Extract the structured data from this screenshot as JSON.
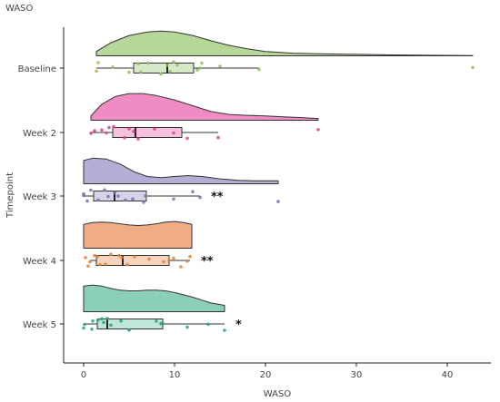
{
  "chart_data": {
    "type": "raincloud",
    "title": "WASO",
    "xlabel": "WASO",
    "ylabel": "Timepoint",
    "xlim": [
      -2,
      45
    ],
    "x_ticks": [
      0,
      10,
      20,
      30,
      40
    ],
    "grid": false,
    "legend": "none",
    "series": [
      {
        "category": "Baseline",
        "color": "#8fbf5a",
        "fill": "#b7d69a",
        "significance": "",
        "box": {
          "min": 1.4,
          "q1": 5.5,
          "median": 9.2,
          "q3": 12.1,
          "max": 19.3
        },
        "density": [
          [
            1.4,
            0.15
          ],
          [
            3,
            0.45
          ],
          [
            5,
            0.7
          ],
          [
            7,
            0.82
          ],
          [
            8.6,
            0.85
          ],
          [
            10,
            0.82
          ],
          [
            12,
            0.7
          ],
          [
            14,
            0.52
          ],
          [
            16,
            0.36
          ],
          [
            18,
            0.24
          ],
          [
            20,
            0.15
          ],
          [
            23,
            0.09
          ],
          [
            26,
            0.07
          ],
          [
            30,
            0.05
          ],
          [
            34,
            0.03
          ],
          [
            38,
            0.02
          ],
          [
            42.8,
            0.01
          ]
        ],
        "points": [
          1.4,
          1.6,
          3.2,
          5.0,
          6.0,
          6.3,
          7.1,
          8.5,
          9.2,
          9.5,
          9.9,
          10.3,
          12.5,
          12.8,
          13.0,
          15.0,
          19.3,
          42.8
        ]
      },
      {
        "category": "Week 2",
        "color": "#d63f8c",
        "fill": "#f08cc4",
        "significance": "",
        "box": {
          "min": 0.8,
          "q1": 3.2,
          "median": 5.7,
          "q3": 10.8,
          "max": 14.8
        },
        "density": [
          [
            0.8,
            0.15
          ],
          [
            2,
            0.55
          ],
          [
            3.5,
            0.82
          ],
          [
            5,
            0.92
          ],
          [
            6.5,
            0.92
          ],
          [
            8,
            0.85
          ],
          [
            10,
            0.7
          ],
          [
            12,
            0.5
          ],
          [
            14,
            0.3
          ],
          [
            16,
            0.2
          ],
          [
            18,
            0.17
          ],
          [
            20,
            0.15
          ],
          [
            22,
            0.12
          ],
          [
            24,
            0.09
          ],
          [
            25.8,
            0.06
          ]
        ],
        "points": [
          0.8,
          1.2,
          2.0,
          2.5,
          2.8,
          3.3,
          4.5,
          5.0,
          5.5,
          6.0,
          7.8,
          9.9,
          11.4,
          14.8,
          25.8
        ]
      },
      {
        "category": "Week 3",
        "color": "#7b6fb0",
        "fill": "#b3aed6",
        "significance": "**",
        "box": {
          "min": 0.0,
          "q1": 1.1,
          "median": 3.4,
          "q3": 6.9,
          "max": 12.8
        },
        "density": [
          [
            0,
            0.8
          ],
          [
            1,
            0.88
          ],
          [
            2.5,
            0.85
          ],
          [
            4,
            0.68
          ],
          [
            5.5,
            0.42
          ],
          [
            7,
            0.25
          ],
          [
            8.5,
            0.21
          ],
          [
            10,
            0.25
          ],
          [
            11.5,
            0.28
          ],
          [
            13,
            0.25
          ],
          [
            15,
            0.17
          ],
          [
            17,
            0.12
          ],
          [
            19,
            0.1
          ],
          [
            21.4,
            0.1
          ]
        ],
        "points": [
          0.0,
          0.0,
          0.4,
          0.8,
          1.6,
          2.3,
          2.7,
          3.4,
          3.8,
          4.6,
          5.4,
          6.6,
          6.8,
          9.9,
          12.0,
          12.8,
          21.4
        ]
      },
      {
        "category": "Week 4",
        "color": "#e07f36",
        "fill": "#f0ad85",
        "significance": "**",
        "box": {
          "min": 0.7,
          "q1": 1.4,
          "median": 4.3,
          "q3": 9.4,
          "max": 11.7
        },
        "density": [
          [
            0,
            0.82
          ],
          [
            1,
            0.88
          ],
          [
            2,
            0.9
          ],
          [
            3,
            0.88
          ],
          [
            4,
            0.84
          ],
          [
            5,
            0.8
          ],
          [
            6,
            0.78
          ],
          [
            7,
            0.8
          ],
          [
            8,
            0.84
          ],
          [
            9,
            0.9
          ],
          [
            10,
            0.92
          ],
          [
            11,
            0.88
          ],
          [
            11.9,
            0.82
          ]
        ],
        "points": [
          0.2,
          0.5,
          0.7,
          1.2,
          1.5,
          1.8,
          2.4,
          3.0,
          3.9,
          4.2,
          4.8,
          5.6,
          7.2,
          8.8,
          9.4,
          9.9,
          10.7,
          11.4,
          11.7
        ]
      },
      {
        "category": "Week 5",
        "color": "#2a9d7f",
        "fill": "#8ccfb9",
        "significance": "*",
        "box": {
          "min": 0.0,
          "q1": 1.5,
          "median": 2.6,
          "q3": 8.7,
          "max": 15.5
        },
        "density": [
          [
            0,
            0.88
          ],
          [
            1,
            0.92
          ],
          [
            2,
            0.88
          ],
          [
            3,
            0.8
          ],
          [
            4,
            0.74
          ],
          [
            5,
            0.72
          ],
          [
            6,
            0.72
          ],
          [
            7,
            0.74
          ],
          [
            8,
            0.74
          ],
          [
            9,
            0.72
          ],
          [
            10,
            0.66
          ],
          [
            11,
            0.58
          ],
          [
            12,
            0.5
          ],
          [
            13,
            0.4
          ],
          [
            14,
            0.3
          ],
          [
            15.5,
            0.22
          ]
        ],
        "points": [
          0.0,
          0.1,
          0.9,
          1.0,
          1.6,
          2.0,
          2.2,
          2.6,
          3.0,
          4.1,
          5.0,
          8.0,
          8.5,
          8.7,
          11.4,
          13.7,
          15.5
        ]
      }
    ]
  }
}
